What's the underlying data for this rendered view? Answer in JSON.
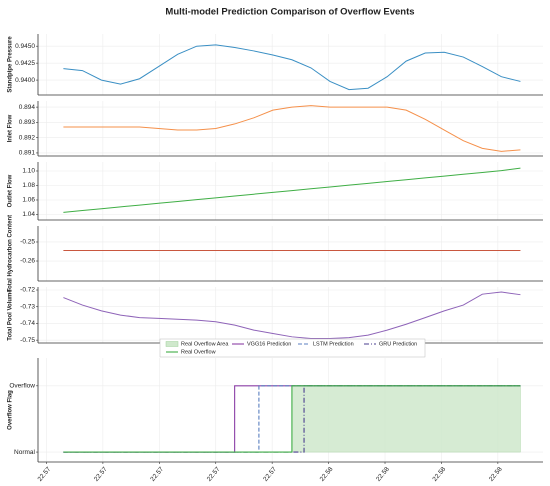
{
  "title": "Multi-model Prediction Comparison of Overflow Events",
  "chart_data": [
    {
      "type": "line",
      "ylabel": "Standpipe Pressure",
      "color": "#3a8fc4",
      "grid": true,
      "xlim": [
        22.5657,
        22.5836
      ],
      "ylim": [
        0.9378,
        0.9468
      ],
      "yticks": [
        {
          "value": 0.94,
          "label": "0.9400"
        },
        0.9425,
        {
          "value": 0.945,
          "label": "0.9450"
        }
      ],
      "x": [
        22.5666,
        22.567275,
        22.56795,
        22.568625,
        22.5693,
        22.569975,
        22.57065,
        22.571325,
        22.572,
        22.572675,
        22.57335,
        22.574025,
        22.5747,
        22.575375,
        22.57605,
        22.576725,
        22.5774,
        22.578075,
        22.57875,
        22.579425,
        22.5801,
        22.580775,
        22.58145,
        22.582125,
        22.5828
      ],
      "values": [
        0.9417,
        0.9414,
        0.94,
        0.9394,
        0.9402,
        0.942,
        0.9438,
        0.945,
        0.9452,
        0.9448,
        0.9443,
        0.9437,
        0.943,
        0.9418,
        0.9398,
        0.9386,
        0.9388,
        0.9405,
        0.9428,
        0.944,
        0.9441,
        0.9434,
        0.942,
        0.9405,
        0.9398
      ]
    },
    {
      "type": "line",
      "ylabel": "Inlet Flow",
      "color": "#f5904a",
      "grid": true,
      "xlim": [
        22.5657,
        22.5836
      ],
      "ylim": [
        0.8908,
        0.8944
      ],
      "yticks": [
        0.891,
        0.892,
        0.893,
        0.894
      ],
      "x": [
        22.5666,
        22.567275,
        22.56795,
        22.568625,
        22.5693,
        22.569975,
        22.57065,
        22.571325,
        22.572,
        22.572675,
        22.57335,
        22.574025,
        22.5747,
        22.575375,
        22.57605,
        22.576725,
        22.5774,
        22.578075,
        22.57875,
        22.579425,
        22.5801,
        22.580775,
        22.58145,
        22.582125,
        22.5828
      ],
      "values": [
        0.8927,
        0.8927,
        0.8927,
        0.8927,
        0.8927,
        0.8926,
        0.8925,
        0.8925,
        0.8926,
        0.8929,
        0.8933,
        0.8938,
        0.894,
        0.8941,
        0.894,
        0.894,
        0.894,
        0.894,
        0.8938,
        0.8932,
        0.8925,
        0.8918,
        0.8913,
        0.8911,
        0.8912
      ]
    },
    {
      "type": "line",
      "ylabel": "Outlet Flow",
      "color": "#3fae45",
      "grid": true,
      "xlim": [
        22.5657,
        22.5836
      ],
      "ylim": [
        1.0324,
        1.1124
      ],
      "yticks": [
        1.04,
        1.06,
        1.08,
        {
          "value": 1.1,
          "label": "1.10"
        }
      ],
      "x": [
        22.5666,
        22.567275,
        22.56795,
        22.568625,
        22.5693,
        22.569975,
        22.57065,
        22.571325,
        22.572,
        22.572675,
        22.57335,
        22.574025,
        22.5747,
        22.575375,
        22.57605,
        22.576725,
        22.5774,
        22.578075,
        22.57875,
        22.579425,
        22.5801,
        22.580775,
        22.58145,
        22.582125,
        22.5828
      ],
      "values": [
        1.043,
        1.0455,
        1.048,
        1.0505,
        1.053,
        1.0555,
        1.058,
        1.0605,
        1.063,
        1.0655,
        1.068,
        1.0705,
        1.073,
        1.0755,
        1.078,
        1.0805,
        1.083,
        1.0855,
        1.088,
        1.0905,
        1.093,
        1.0955,
        1.098,
        1.1005,
        1.104
      ]
    },
    {
      "type": "line",
      "ylabel": "Total Hydrocarbon Content",
      "color": "#c9573f",
      "grid": true,
      "xlim": [
        22.5657,
        22.5836
      ],
      "ylim": [
        -0.2705,
        -0.2416
      ],
      "yticks": [
        -0.26,
        -0.25
      ],
      "x": [
        22.5666,
        22.5828
      ],
      "values": [
        -0.2545,
        -0.2545
      ]
    },
    {
      "type": "line",
      "ylabel": "Total Pool Volume",
      "color": "#8e63b8",
      "grid": true,
      "xlim": [
        22.5657,
        22.5836
      ],
      "ylim": [
        -0.7517,
        -0.7182
      ],
      "yticks": [
        -0.75,
        -0.74,
        -0.73,
        -0.72
      ],
      "x": [
        22.5666,
        22.567275,
        22.56795,
        22.568625,
        22.5693,
        22.569975,
        22.57065,
        22.571325,
        22.572,
        22.572675,
        22.57335,
        22.574025,
        22.5747,
        22.575375,
        22.57605,
        22.576725,
        22.5774,
        22.578075,
        22.57875,
        22.579425,
        22.5801,
        22.580775,
        22.58145,
        22.582125,
        22.5828
      ],
      "values": [
        -0.7245,
        -0.729,
        -0.7325,
        -0.735,
        -0.7365,
        -0.737,
        -0.7375,
        -0.738,
        -0.739,
        -0.741,
        -0.744,
        -0.746,
        -0.748,
        -0.749,
        -0.749,
        -0.7485,
        -0.747,
        -0.744,
        -0.7405,
        -0.7365,
        -0.7325,
        -0.729,
        -0.7225,
        -0.7212,
        -0.7228
      ]
    },
    {
      "type": "step",
      "ylabel": "Overflow Flag",
      "grid": true,
      "legend": "top",
      "xlim": [
        22.5657,
        22.5836
      ],
      "ylim": [
        -0.15,
        1.42
      ],
      "yticks": [
        {
          "value": 0,
          "label": "Normal"
        },
        {
          "value": 1,
          "label": "Overflow"
        }
      ],
      "xticks": [
        {
          "value": 22.566,
          "label": "22.57"
        },
        {
          "value": 22.568,
          "label": "22.57"
        },
        {
          "value": 22.57,
          "label": "22.57"
        },
        {
          "value": 22.572,
          "label": "22.57"
        },
        {
          "value": 22.574,
          "label": "22.57"
        },
        {
          "value": 22.576,
          "label": "22.58"
        },
        {
          "value": 22.578,
          "label": "22.58"
        },
        {
          "value": 22.58,
          "label": "22.58"
        },
        {
          "value": 22.582,
          "label": "22.58"
        }
      ],
      "series": [
        {
          "name": "Real Overflow Area",
          "kind": "area",
          "color": "#cfe8cc",
          "x": [
            22.5747,
            22.5828
          ],
          "values": [
            1,
            1
          ]
        },
        {
          "name": "VGG16 Prediction",
          "kind": "line",
          "dash": "solid",
          "color": "#8b3fa6",
          "x": [
            22.5666,
            22.57267,
            22.5828
          ],
          "values": [
            0,
            1,
            1
          ]
        },
        {
          "name": "LSTM Prediction",
          "kind": "line",
          "dash": "dashed",
          "color": "#5b7fc0",
          "x": [
            22.5666,
            22.57353,
            22.5828
          ],
          "values": [
            0,
            1,
            1
          ]
        },
        {
          "name": "GRU Prediction",
          "kind": "line",
          "dash": "dashdot",
          "color": "#4a3d8f",
          "x": [
            22.5666,
            22.57513,
            22.5828
          ],
          "values": [
            0,
            1,
            1
          ]
        },
        {
          "name": "Real Overflow",
          "kind": "line",
          "dash": "solid",
          "color": "#3fae45",
          "x": [
            22.5666,
            22.5747,
            22.5828
          ],
          "values": [
            0,
            1,
            1
          ]
        }
      ]
    }
  ]
}
